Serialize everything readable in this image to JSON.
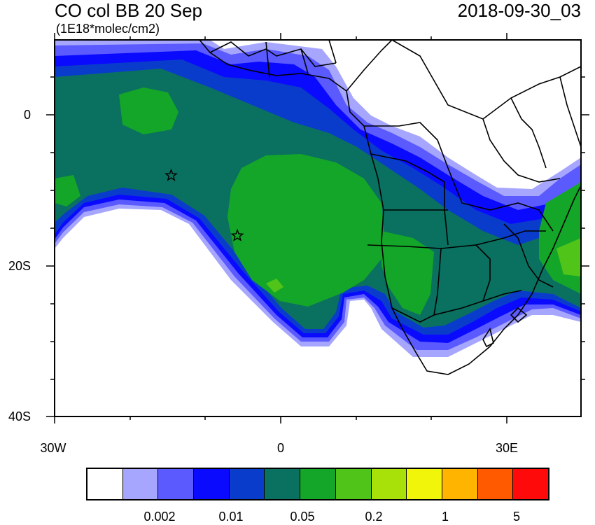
{
  "title": "CO col BB 20 Sep",
  "subtitle": "(1E18*molec/cm2)",
  "timestamp": "2018-09-30_03",
  "lat_labels": [
    "0",
    "20S",
    "40S"
  ],
  "lon_labels": [
    "30W",
    "0",
    "30E"
  ],
  "legend": {
    "colors": [
      "#ffffff",
      "#a6a6ff",
      "#5a5aff",
      "#0a0aff",
      "#0a3ccc",
      "#0a7060",
      "#14a628",
      "#50c418",
      "#a8e00a",
      "#f0f50a",
      "#ffb400",
      "#ff5a00",
      "#ff0a0a"
    ],
    "labels": [
      "0.002",
      "0.01",
      "0.05",
      "0.2",
      "1",
      "5"
    ]
  },
  "markers": [
    {
      "name": "star",
      "lon": -14.5,
      "lat": -8.0
    },
    {
      "name": "star",
      "lon": -5.7,
      "lat": -16.0
    }
  ]
}
